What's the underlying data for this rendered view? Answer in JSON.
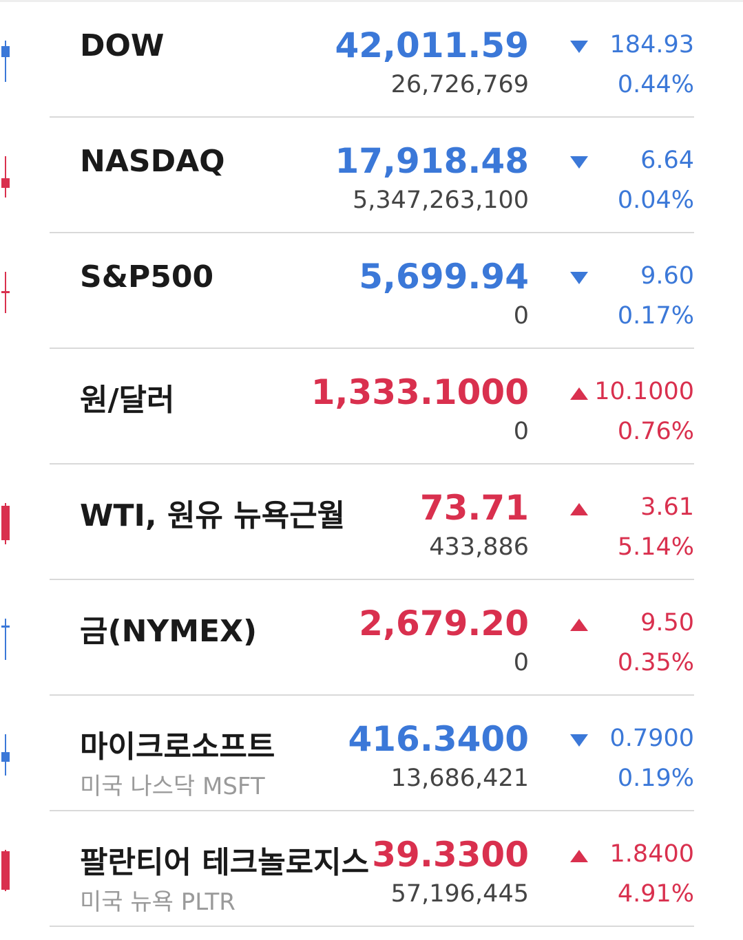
{
  "colors": {
    "down": "#3b78d8",
    "up": "#d9304e",
    "name": "#1a1a1a",
    "subtext": "#9a9a9a",
    "volume": "#444444",
    "divider": "#d9d9d9"
  },
  "quotes": [
    {
      "name": "DOW",
      "sub": "",
      "price": "42,011.59",
      "volume": "26,726,769",
      "direction": "down",
      "arrow_icon": "triangle-down-icon",
      "change": "184.93",
      "pct": "0.44%",
      "candle": "blue"
    },
    {
      "name": "NASDAQ",
      "sub": "",
      "price": "17,918.48",
      "volume": "5,347,263,100",
      "direction": "down",
      "arrow_icon": "triangle-down-icon",
      "change": "6.64",
      "pct": "0.04%",
      "candle": "red"
    },
    {
      "name": "S&P500",
      "sub": "",
      "price": "5,699.94",
      "volume": "0",
      "direction": "down",
      "arrow_icon": "triangle-down-icon",
      "change": "9.60",
      "pct": "0.17%",
      "candle": "red"
    },
    {
      "name": "원/달러",
      "sub": "",
      "price": "1,333.1000",
      "volume": "0",
      "direction": "up",
      "arrow_icon": "triangle-up-icon",
      "change": "10.1000",
      "pct": "0.76%",
      "candle": "none"
    },
    {
      "name": "WTI, 원유 뉴욕근월",
      "sub": "",
      "price": "73.71",
      "volume": "433,886",
      "direction": "up",
      "arrow_icon": "triangle-up-icon",
      "change": "3.61",
      "pct": "5.14%",
      "candle": "red"
    },
    {
      "name": "금(NYMEX)",
      "sub": "",
      "price": "2,679.20",
      "volume": "0",
      "direction": "up",
      "arrow_icon": "triangle-up-icon",
      "change": "9.50",
      "pct": "0.35%",
      "candle": "blue"
    },
    {
      "name": "마이크로소프트",
      "sub": "미국 나스닥 MSFT",
      "price": "416.3400",
      "volume": "13,686,421",
      "direction": "down",
      "arrow_icon": "triangle-down-icon",
      "change": "0.7900",
      "pct": "0.19%",
      "candle": "blue"
    },
    {
      "name": "팔란티어 테크놀로지스",
      "sub": "미국 뉴욕 PLTR",
      "price": "39.3300",
      "volume": "57,196,445",
      "direction": "up",
      "arrow_icon": "triangle-up-icon",
      "change": "1.8400",
      "pct": "4.91%",
      "candle": "red"
    }
  ]
}
